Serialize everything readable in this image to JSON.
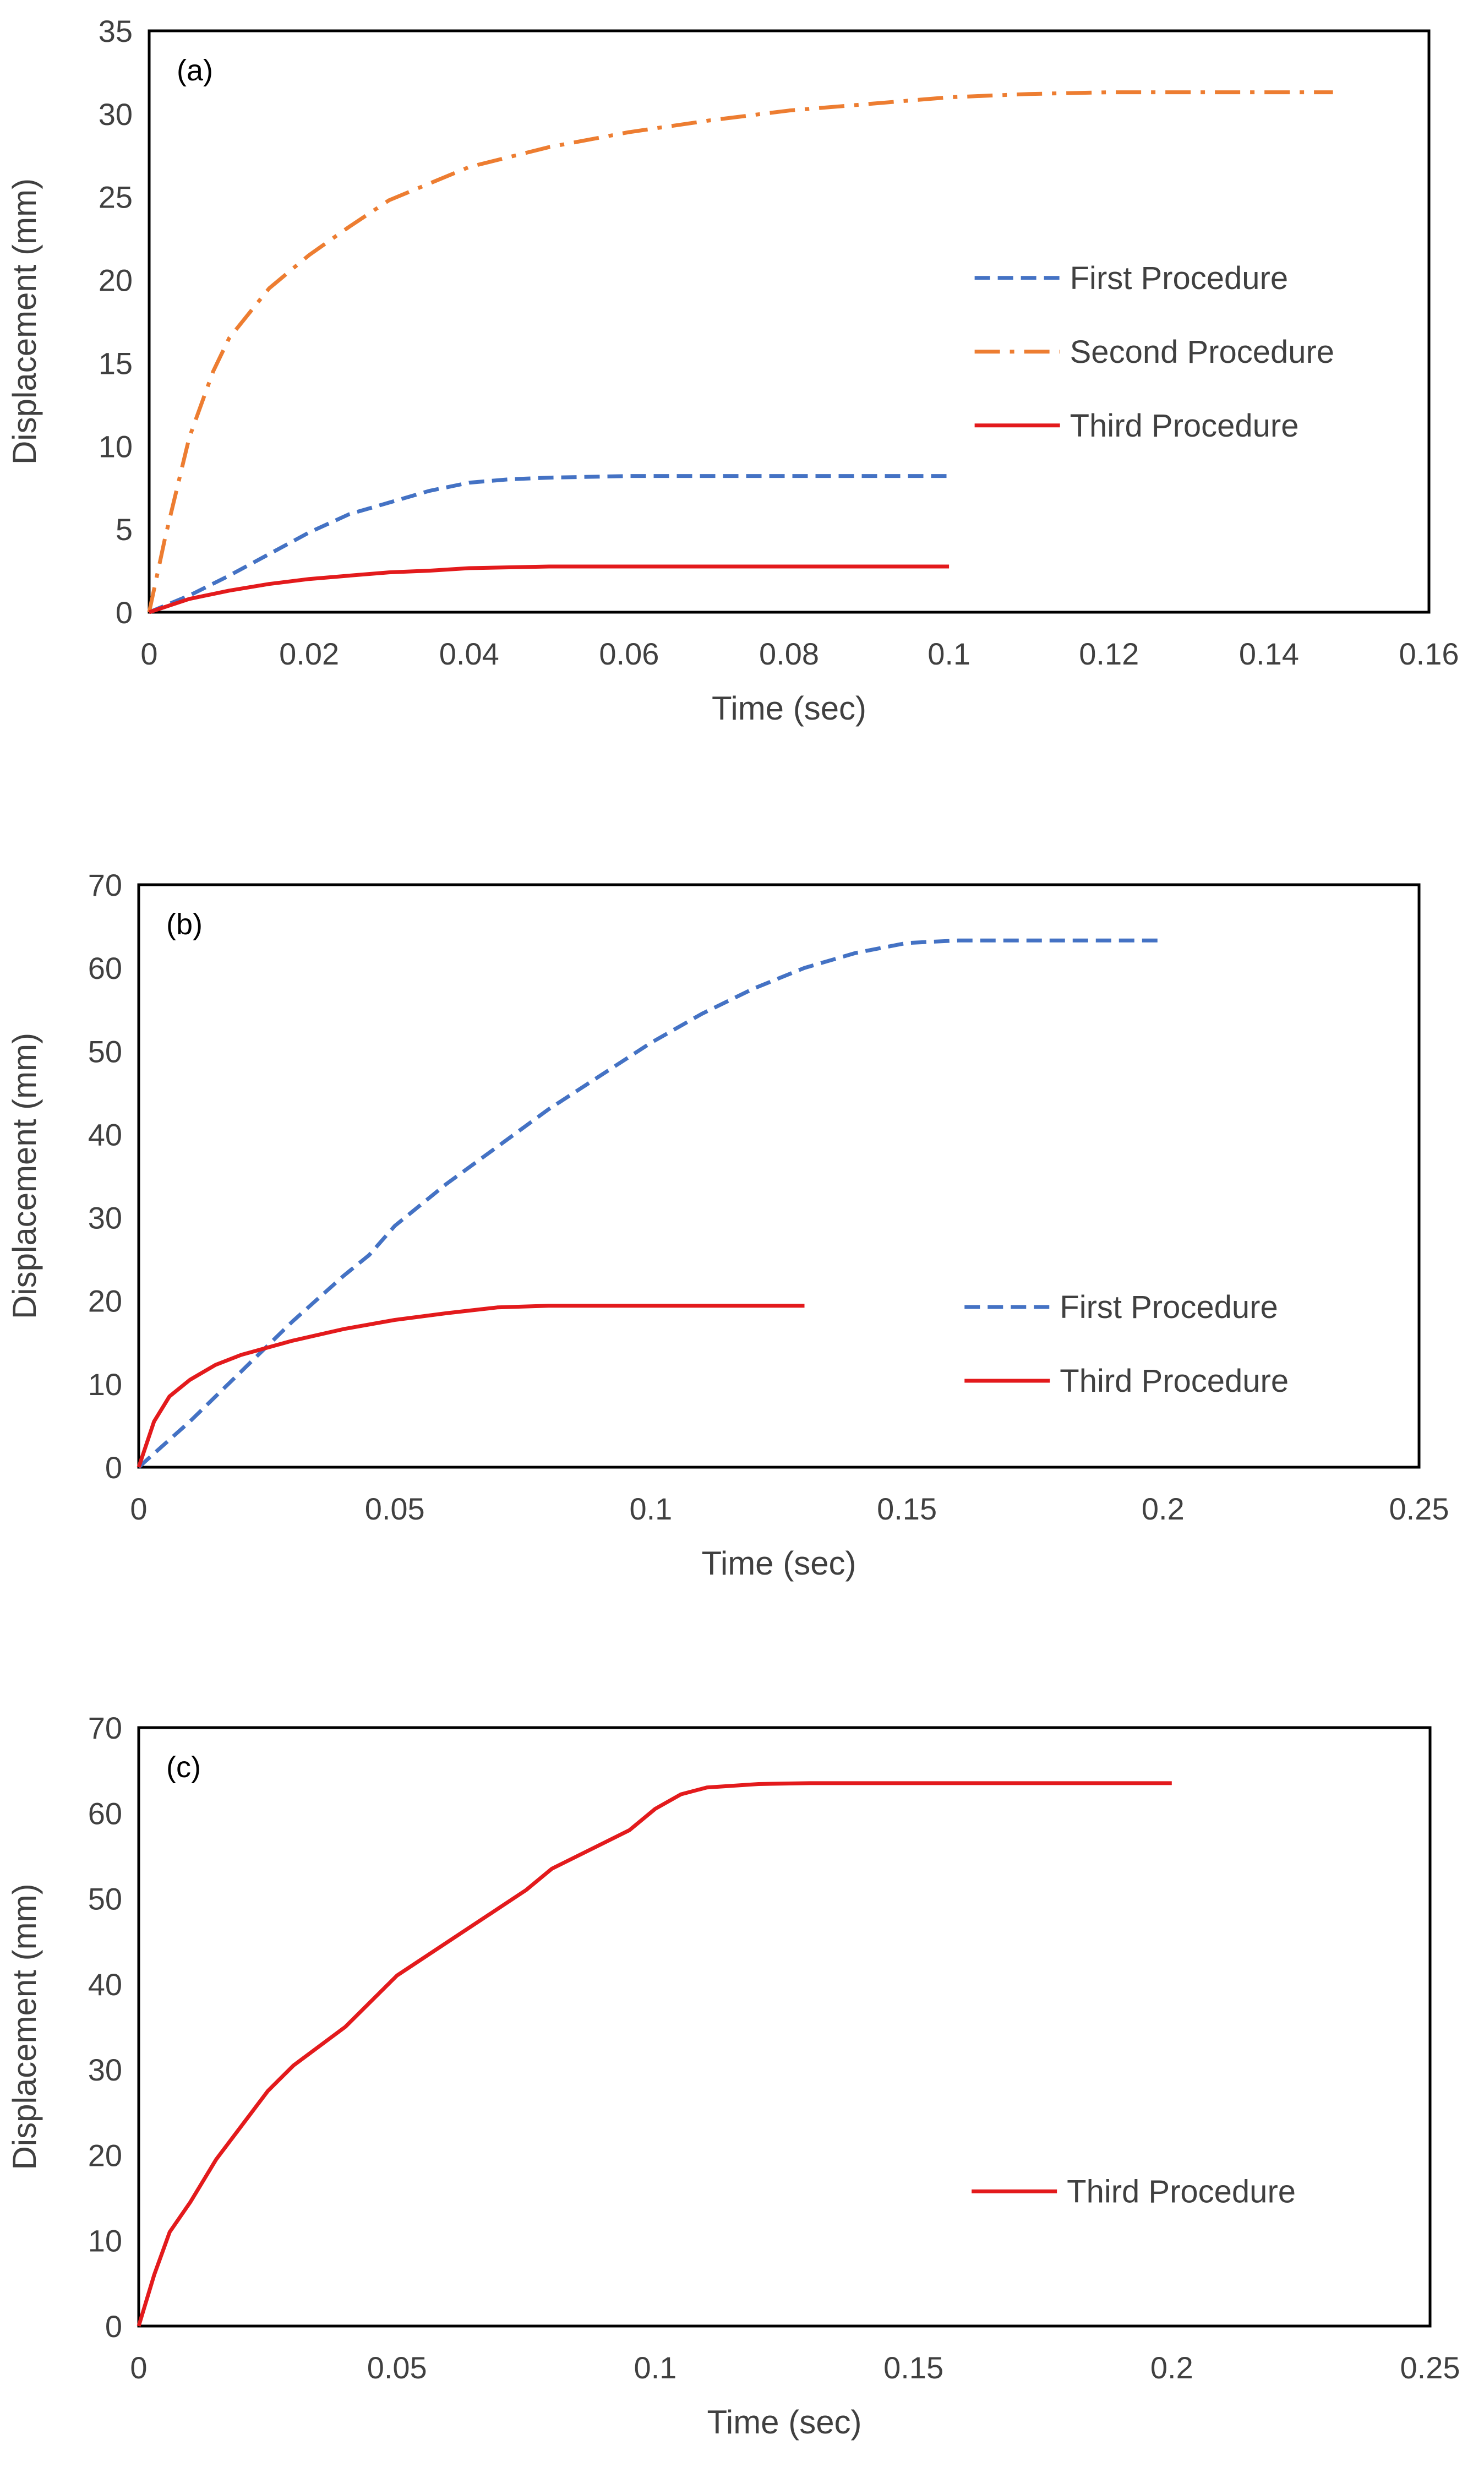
{
  "chart_data": [
    {
      "panel": "(a)",
      "type": "line",
      "xlabel": "Time (sec)",
      "ylabel": "Displacement (mm)",
      "xlim": [
        0,
        0.16
      ],
      "ylim": [
        0,
        35
      ],
      "xticks": [
        "0",
        "0.02",
        "0.04",
        "0.06",
        "0.08",
        "0.1",
        "0.12",
        "0.14",
        "0.16"
      ],
      "yticks": [
        "0",
        "5",
        "10",
        "15",
        "20",
        "25",
        "30",
        "35"
      ],
      "grid": false,
      "legend_position": "right",
      "series": [
        {
          "name": "First Procedure",
          "color": "#4472C4",
          "style": "dashed",
          "x": [
            0,
            0.005,
            0.01,
            0.015,
            0.02,
            0.025,
            0.03,
            0.035,
            0.04,
            0.045,
            0.05,
            0.06,
            0.07,
            0.08,
            0.09,
            0.1
          ],
          "y": [
            0,
            1.0,
            2.2,
            3.5,
            4.8,
            5.9,
            6.6,
            7.3,
            7.8,
            8.0,
            8.1,
            8.2,
            8.2,
            8.2,
            8.2,
            8.2
          ]
        },
        {
          "name": "Second Procedure",
          "color": "#ED7D31",
          "style": "dashdot",
          "x": [
            0,
            0.002,
            0.005,
            0.008,
            0.01,
            0.015,
            0.02,
            0.025,
            0.03,
            0.04,
            0.05,
            0.06,
            0.07,
            0.08,
            0.09,
            0.1,
            0.11,
            0.12,
            0.13,
            0.14,
            0.148
          ],
          "y": [
            0,
            4.5,
            10.5,
            14.5,
            16.5,
            19.5,
            21.5,
            23.2,
            24.8,
            26.8,
            28.0,
            28.9,
            29.6,
            30.2,
            30.6,
            31.0,
            31.2,
            31.3,
            31.3,
            31.3,
            31.3
          ]
        },
        {
          "name": "Third Procedure",
          "color": "#E31A1C",
          "style": "solid",
          "x": [
            0,
            0.005,
            0.01,
            0.015,
            0.02,
            0.025,
            0.03,
            0.035,
            0.04,
            0.045,
            0.05,
            0.06,
            0.07,
            0.08,
            0.09,
            0.1
          ],
          "y": [
            0,
            0.8,
            1.3,
            1.7,
            2.0,
            2.2,
            2.4,
            2.5,
            2.65,
            2.7,
            2.75,
            2.75,
            2.75,
            2.75,
            2.75,
            2.75
          ]
        }
      ]
    },
    {
      "panel": "(b)",
      "type": "line",
      "xlabel": "Time (sec)",
      "ylabel": "Displacement (mm)",
      "xlim": [
        0,
        0.25
      ],
      "ylim": [
        0,
        70
      ],
      "xticks": [
        "0",
        "0.05",
        "0.1",
        "0.15",
        "0.2",
        "0.25"
      ],
      "yticks": [
        "0",
        "10",
        "20",
        "30",
        "40",
        "50",
        "60",
        "70"
      ],
      "grid": false,
      "legend_position": "right",
      "series": [
        {
          "name": "First Procedure",
          "color": "#4472C4",
          "style": "dashed",
          "x": [
            0,
            0.01,
            0.02,
            0.03,
            0.04,
            0.045,
            0.05,
            0.06,
            0.07,
            0.08,
            0.09,
            0.1,
            0.11,
            0.12,
            0.13,
            0.14,
            0.15,
            0.16,
            0.17,
            0.18,
            0.19,
            0.2
          ],
          "y": [
            0,
            5.5,
            11.5,
            17.5,
            23.0,
            25.5,
            29.0,
            34.0,
            38.5,
            43.0,
            47.0,
            51.0,
            54.5,
            57.5,
            60.0,
            61.8,
            63.0,
            63.3,
            63.3,
            63.3,
            63.3,
            63.3
          ]
        },
        {
          "name": "Third Procedure",
          "color": "#E31A1C",
          "style": "solid",
          "x": [
            0,
            0.003,
            0.006,
            0.01,
            0.015,
            0.02,
            0.03,
            0.04,
            0.05,
            0.06,
            0.07,
            0.08,
            0.09,
            0.1,
            0.11,
            0.12,
            0.13
          ],
          "y": [
            0,
            5.5,
            8.5,
            10.5,
            12.3,
            13.5,
            15.2,
            16.6,
            17.7,
            18.5,
            19.2,
            19.4,
            19.4,
            19.4,
            19.4,
            19.4,
            19.4
          ]
        }
      ]
    },
    {
      "panel": "(c)",
      "type": "line",
      "xlabel": "Time (sec)",
      "ylabel": "Displacement (mm)",
      "xlim": [
        0,
        0.25
      ],
      "ylim": [
        0,
        70
      ],
      "xticks": [
        "0",
        "0.05",
        "0.1",
        "0.15",
        "0.2",
        "0.25"
      ],
      "yticks": [
        "0",
        "10",
        "20",
        "30",
        "40",
        "50",
        "60",
        "70"
      ],
      "grid": false,
      "legend_position": "right",
      "series": [
        {
          "name": "Third Procedure",
          "color": "#E31A1C",
          "style": "solid",
          "x": [
            0,
            0.003,
            0.006,
            0.01,
            0.015,
            0.02,
            0.025,
            0.03,
            0.04,
            0.05,
            0.06,
            0.07,
            0.075,
            0.08,
            0.09,
            0.095,
            0.1,
            0.105,
            0.11,
            0.12,
            0.13,
            0.15,
            0.17,
            0.2
          ],
          "y": [
            0,
            6.0,
            11.0,
            14.5,
            19.5,
            23.5,
            27.5,
            30.5,
            35.0,
            41.0,
            45.0,
            49.0,
            51.0,
            53.5,
            56.5,
            58.0,
            60.5,
            62.2,
            63.0,
            63.4,
            63.5,
            63.5,
            63.5,
            63.5
          ]
        }
      ]
    }
  ]
}
